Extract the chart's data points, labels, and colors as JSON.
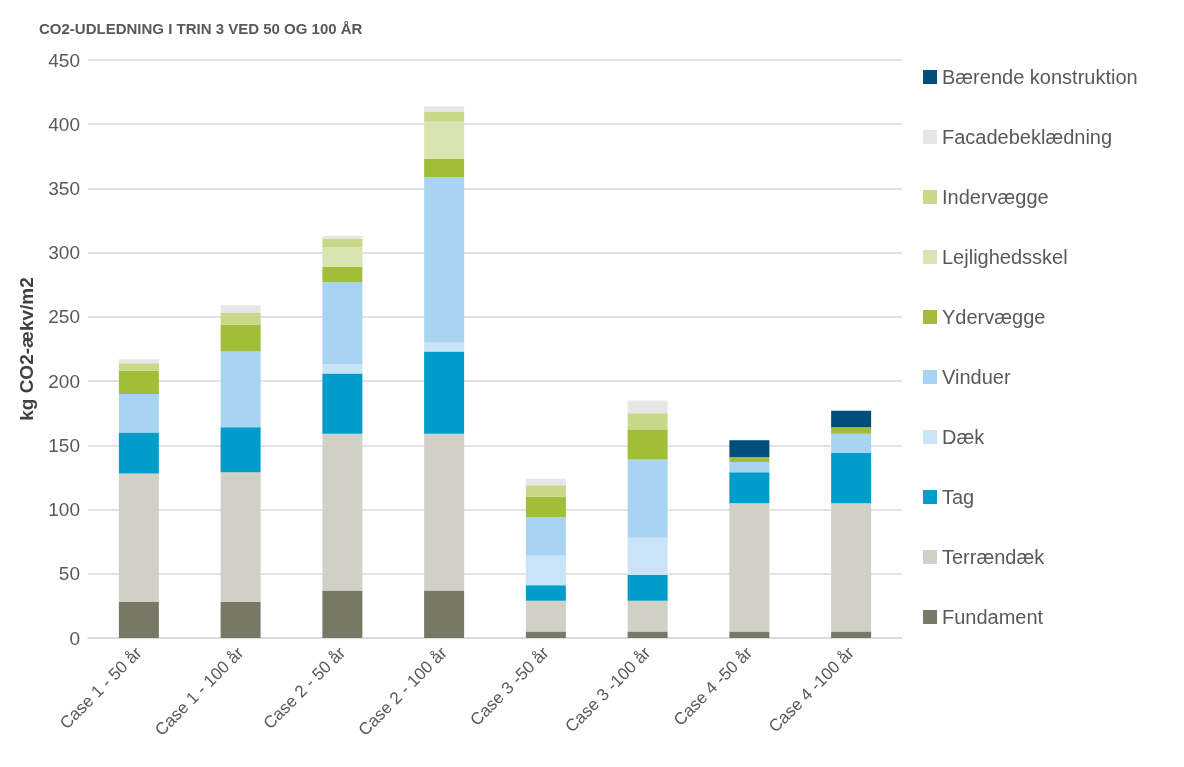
{
  "chart_data": {
    "type": "bar",
    "title": "CO2-UDLEDNING I TRIN 3 VED 50 OG 100 ÅR",
    "ylabel": "kg CO2-ækv/m2",
    "categories": [
      "Case 1 - 50 år",
      "Case 1 - 100 år",
      "Case 2 - 50 år",
      "Case 2 - 100 år",
      "Case 3 -50 år",
      "Case 3 -100 år",
      "Case 4 -50 år",
      "Case 4 -100 år"
    ],
    "stacked": true,
    "ylim": [
      0,
      450
    ],
    "yticks": [
      0,
      50,
      100,
      150,
      200,
      250,
      300,
      350,
      400,
      450
    ],
    "grid": "y",
    "legend": "right",
    "series": [
      {
        "name": "Fundament",
        "color": "#787866",
        "values": [
          28,
          28,
          37,
          37,
          5,
          5,
          5,
          5
        ]
      },
      {
        "name": "Terrændæk",
        "color": "#d0d0c6",
        "values": [
          100,
          101,
          122,
          122,
          24,
          24,
          100,
          100
        ]
      },
      {
        "name": "Tag",
        "color": "#009ccc",
        "values": [
          32,
          35,
          47,
          64,
          12,
          20,
          24,
          39
        ]
      },
      {
        "name": "Dæk",
        "color": "#c9e3f7",
        "values": [
          0,
          0,
          7,
          7,
          23,
          29,
          0,
          0
        ]
      },
      {
        "name": "Vinduer",
        "color": "#a8d4f2",
        "values": [
          30,
          59,
          64,
          129,
          30,
          61,
          8,
          15
        ]
      },
      {
        "name": "Ydervægge",
        "color": "#a0be37",
        "values": [
          18,
          21,
          12,
          14,
          16,
          23,
          4,
          5
        ]
      },
      {
        "name": "Lejlighedsskel",
        "color": "#d8e5b0",
        "values": [
          0,
          0,
          15,
          29,
          0,
          0,
          0,
          0
        ]
      },
      {
        "name": "Indervægge",
        "color": "#c7d987",
        "values": [
          6,
          9,
          7,
          8,
          9,
          13,
          0,
          0
        ]
      },
      {
        "name": "Facadebeklædning",
        "color": "#e6e6e6",
        "values": [
          3,
          6,
          2,
          4,
          5,
          10,
          0,
          0
        ]
      },
      {
        "name": "Bærende konstruktion",
        "color": "#004e7a",
        "values": [
          0,
          0,
          0,
          0,
          0,
          0,
          13,
          13
        ]
      }
    ]
  }
}
